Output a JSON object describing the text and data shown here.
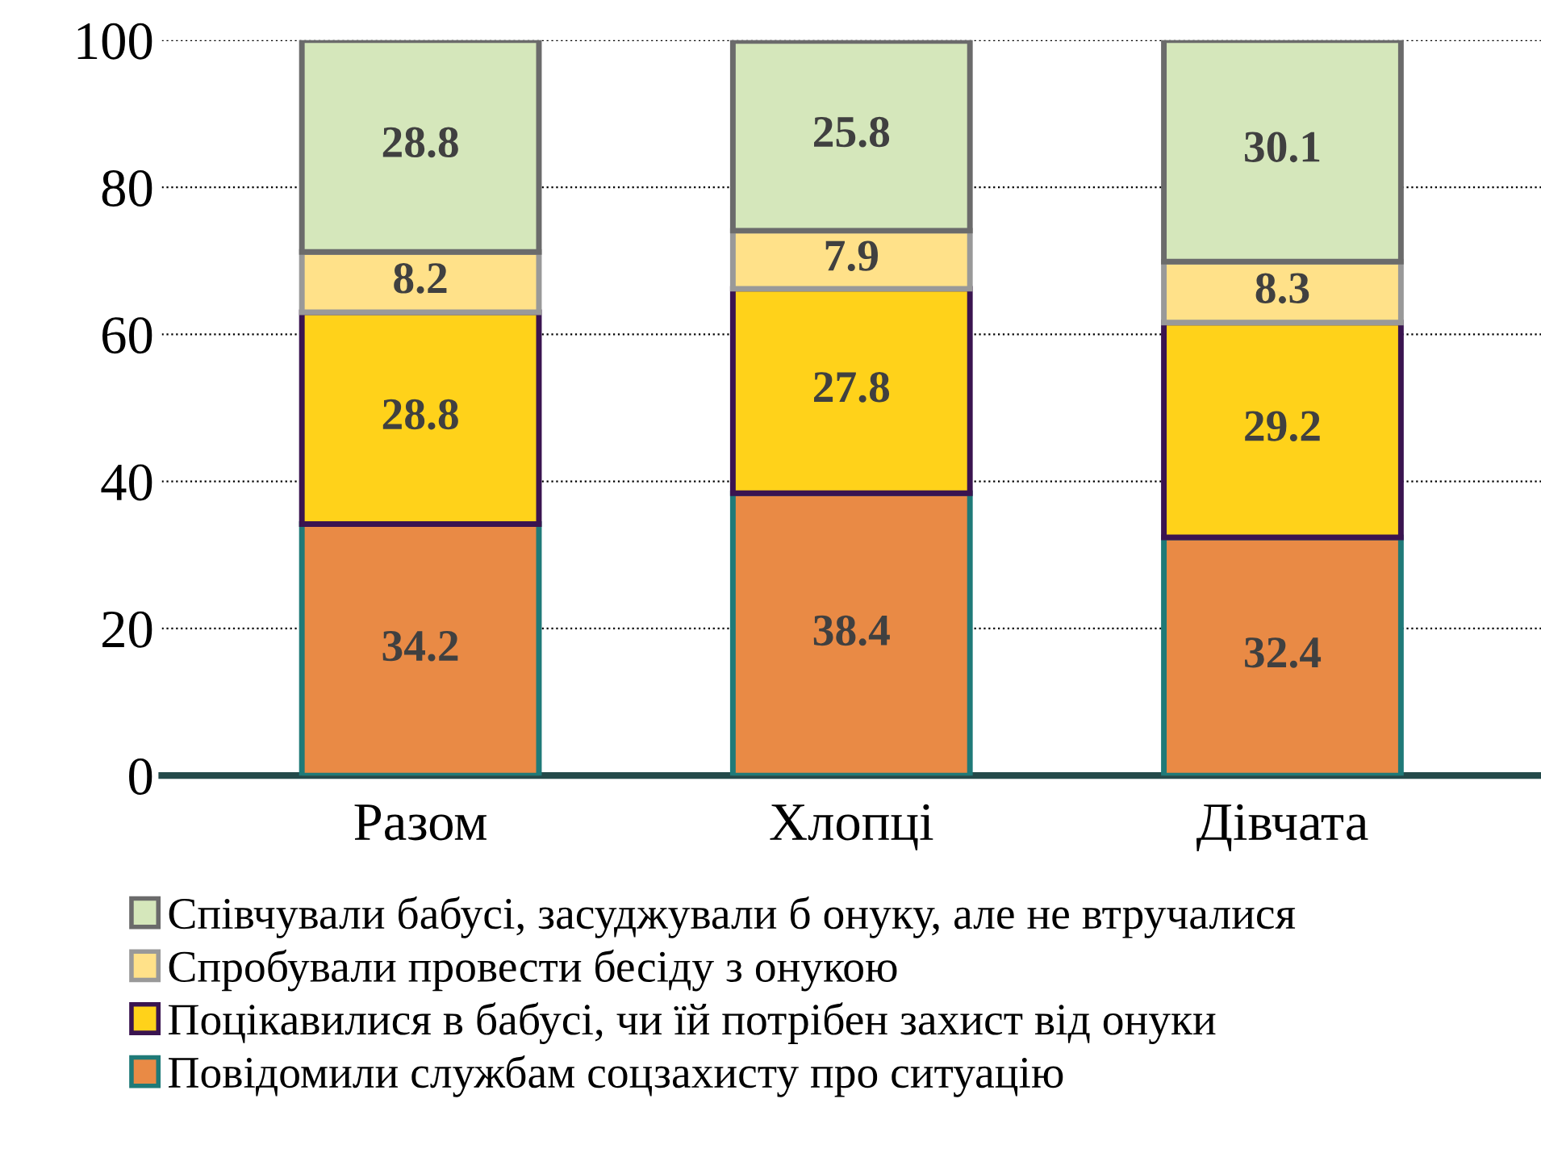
{
  "chart_data": {
    "type": "bar",
    "stacked": true,
    "categories": [
      "Разом",
      "Хлопці",
      "Дівчата"
    ],
    "series": [
      {
        "name": "Повідомили службам соцзахисту про ситуацію",
        "color": "#e98a45",
        "values": [
          34.2,
          38.4,
          32.4
        ]
      },
      {
        "name": "Поцікавилися в бабусі, чи їй потрібен захист від онуки",
        "color": "#ffd21a",
        "values": [
          28.8,
          27.8,
          29.2
        ]
      },
      {
        "name": "Спробували провести бесіду з онукою",
        "color": "#ffe189",
        "values": [
          8.2,
          7.9,
          8.3
        ]
      },
      {
        "name": "Співчували бабусі, засуджували б онуку, але не втручалися",
        "color": "#d5e7bb",
        "values": [
          28.8,
          25.8,
          30.1
        ]
      }
    ],
    "ylim": [
      0,
      100
    ],
    "yticks": [
      0,
      20,
      40,
      60,
      80,
      100
    ],
    "grid": "y",
    "line_style": "dotted",
    "data_labels": true,
    "legend": "bottom"
  }
}
